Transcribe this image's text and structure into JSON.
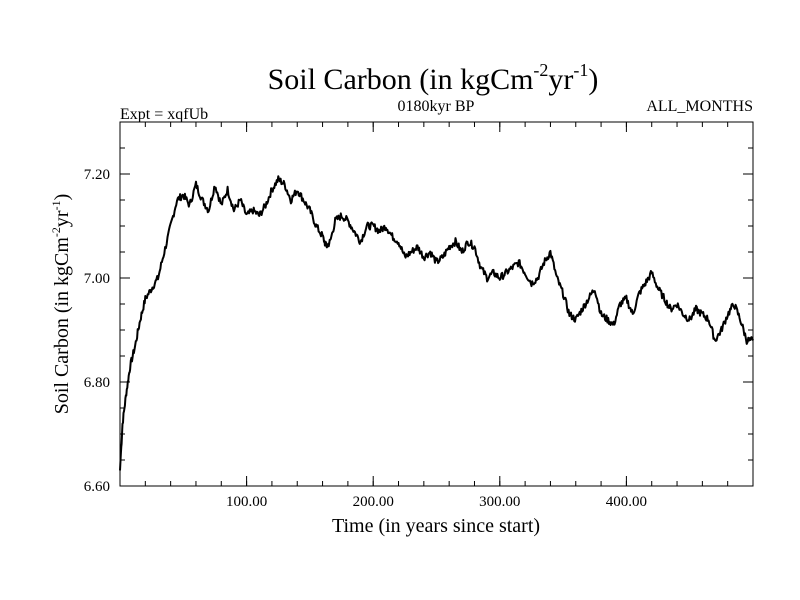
{
  "chart_data": {
    "type": "line",
    "title_main": "Soil Carbon (in kgCm",
    "title_exp1": "-2",
    "title_mid": "yr",
    "title_exp2": "-1",
    "title_end": ")",
    "header_left": "Expt = xqfUb",
    "header_center": "0180kyr BP",
    "header_right": "ALL_MONTHS",
    "xlabel": "Time (in years since start)",
    "ylabel_main": "Soil Carbon (in kgCm",
    "ylabel_exp1": "-2",
    "ylabel_mid": "yr",
    "ylabel_exp2": "-1",
    "ylabel_end": ")",
    "xlim": [
      0,
      500
    ],
    "ylim": [
      6.6,
      7.3
    ],
    "xticks": [
      100,
      200,
      300,
      400
    ],
    "xtick_labels": [
      "100.00",
      "200.00",
      "300.00",
      "400.00"
    ],
    "x_minor_step": 20,
    "yticks": [
      6.6,
      6.8,
      7.0,
      7.2
    ],
    "ytick_labels": [
      "6.60",
      "6.80",
      "7.00",
      "7.20"
    ],
    "y_minor_step": 0.05,
    "line_color": "#000000",
    "series": [
      {
        "name": "Soil Carbon",
        "x": [
          0,
          2,
          5,
          8,
          12,
          16,
          20,
          25,
          30,
          35,
          40,
          45,
          50,
          55,
          60,
          65,
          70,
          75,
          80,
          85,
          90,
          95,
          100,
          105,
          110,
          115,
          120,
          125,
          130,
          135,
          140,
          145,
          150,
          155,
          160,
          163,
          166,
          170,
          175,
          180,
          185,
          190,
          195,
          200,
          205,
          210,
          215,
          220,
          225,
          230,
          235,
          240,
          245,
          250,
          255,
          260,
          265,
          270,
          275,
          280,
          285,
          290,
          295,
          300,
          305,
          310,
          315,
          320,
          325,
          330,
          335,
          340,
          345,
          350,
          355,
          360,
          365,
          370,
          375,
          380,
          385,
          390,
          395,
          400,
          405,
          410,
          415,
          420,
          425,
          430,
          435,
          440,
          445,
          450,
          455,
          460,
          465,
          470,
          475,
          480,
          485,
          490,
          495,
          500
        ],
        "values": [
          6.63,
          6.72,
          6.78,
          6.83,
          6.87,
          6.92,
          6.96,
          6.98,
          7.0,
          7.05,
          7.1,
          7.15,
          7.16,
          7.14,
          7.18,
          7.15,
          7.13,
          7.18,
          7.14,
          7.17,
          7.13,
          7.15,
          7.12,
          7.13,
          7.12,
          7.14,
          7.17,
          7.19,
          7.18,
          7.15,
          7.17,
          7.15,
          7.13,
          7.1,
          7.08,
          7.06,
          7.07,
          7.11,
          7.12,
          7.11,
          7.09,
          7.07,
          7.1,
          7.1,
          7.09,
          7.1,
          7.08,
          7.07,
          7.04,
          7.05,
          7.06,
          7.04,
          7.05,
          7.03,
          7.04,
          7.06,
          7.07,
          7.05,
          7.07,
          7.06,
          7.02,
          7.0,
          7.01,
          7.0,
          7.01,
          7.02,
          7.03,
          7.01,
          6.99,
          7.0,
          7.03,
          7.05,
          7.0,
          6.97,
          6.93,
          6.92,
          6.94,
          6.96,
          6.98,
          6.93,
          6.92,
          6.91,
          6.95,
          6.96,
          6.93,
          6.97,
          6.99,
          7.01,
          6.98,
          6.96,
          6.94,
          6.95,
          6.93,
          6.92,
          6.94,
          6.93,
          6.92,
          6.88,
          6.9,
          6.93,
          6.95,
          6.92,
          6.88,
          6.88
        ]
      }
    ]
  }
}
